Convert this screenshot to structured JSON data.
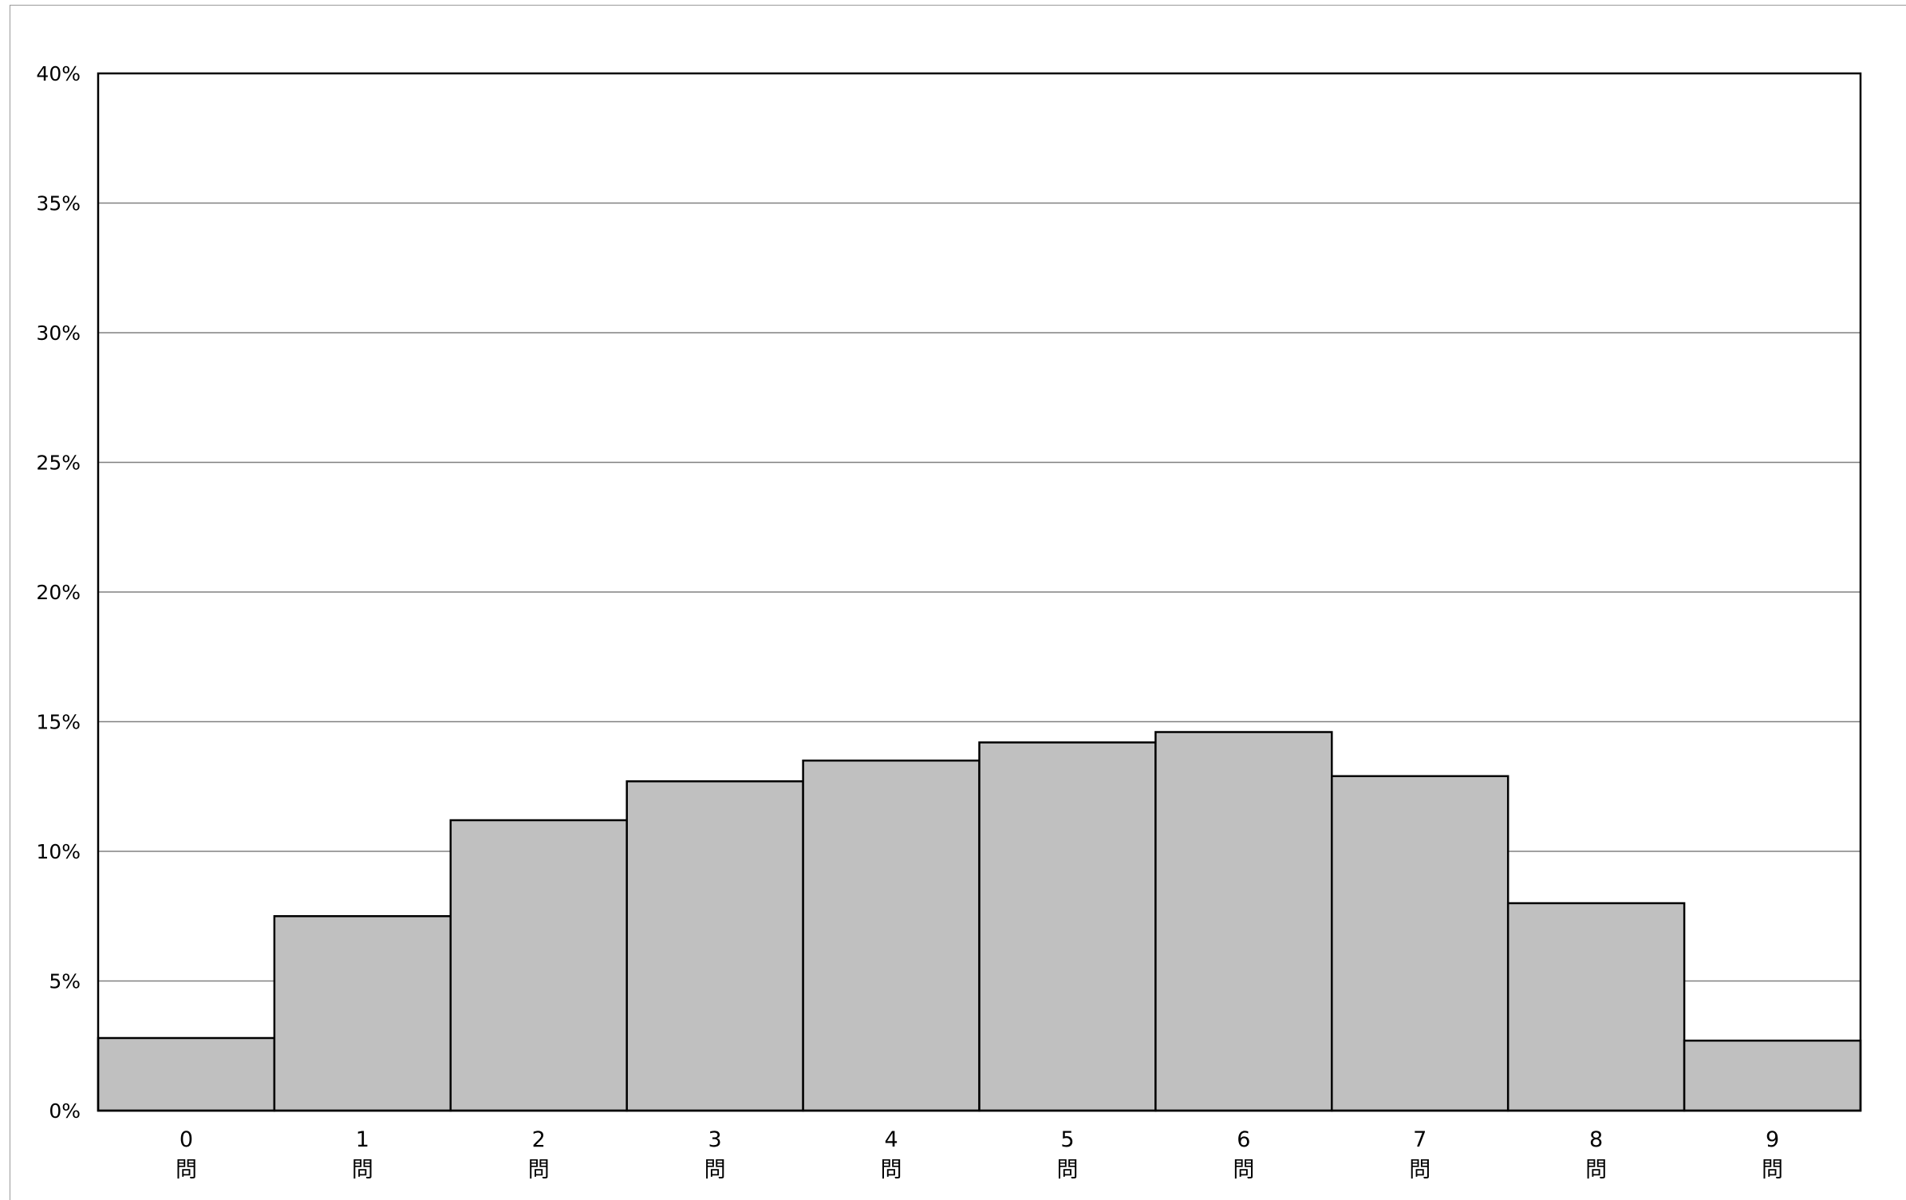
{
  "chart_data": {
    "type": "bar",
    "title": "",
    "xlabel": "",
    "ylabel": "",
    "categories": [
      "0\n問",
      "1\n問",
      "2\n問",
      "3\n問",
      "4\n問",
      "5\n問",
      "6\n問",
      "7\n問",
      "8\n問",
      "9\n問"
    ],
    "category_numbers": [
      "0",
      "1",
      "2",
      "3",
      "4",
      "5",
      "6",
      "7",
      "8",
      "9"
    ],
    "category_unit": "問",
    "values": [
      2.8,
      7.5,
      11.2,
      12.7,
      13.5,
      14.2,
      14.6,
      12.9,
      8.0,
      2.7
    ],
    "ylim": [
      0,
      40
    ],
    "yticks": [
      0,
      5,
      10,
      15,
      20,
      25,
      30,
      35,
      40
    ],
    "ytick_labels": [
      "0%",
      "5%",
      "10%",
      "15%",
      "20%",
      "25%",
      "30%",
      "35%",
      "40%"
    ],
    "grid": true,
    "legend": "none",
    "colors": {
      "bar_fill": "#c0c0c0",
      "bar_stroke": "#000000",
      "grid": "#808080",
      "plot_border": "#000000"
    }
  }
}
